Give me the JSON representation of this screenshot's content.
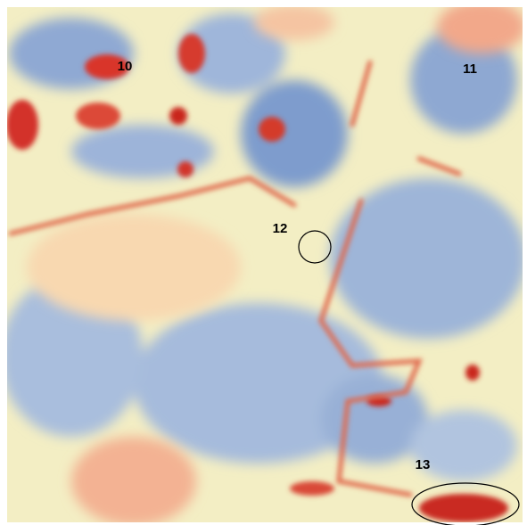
{
  "annotations": [
    {
      "label": "10"
    },
    {
      "label": "11"
    },
    {
      "label": "12"
    },
    {
      "label": "13"
    }
  ]
}
